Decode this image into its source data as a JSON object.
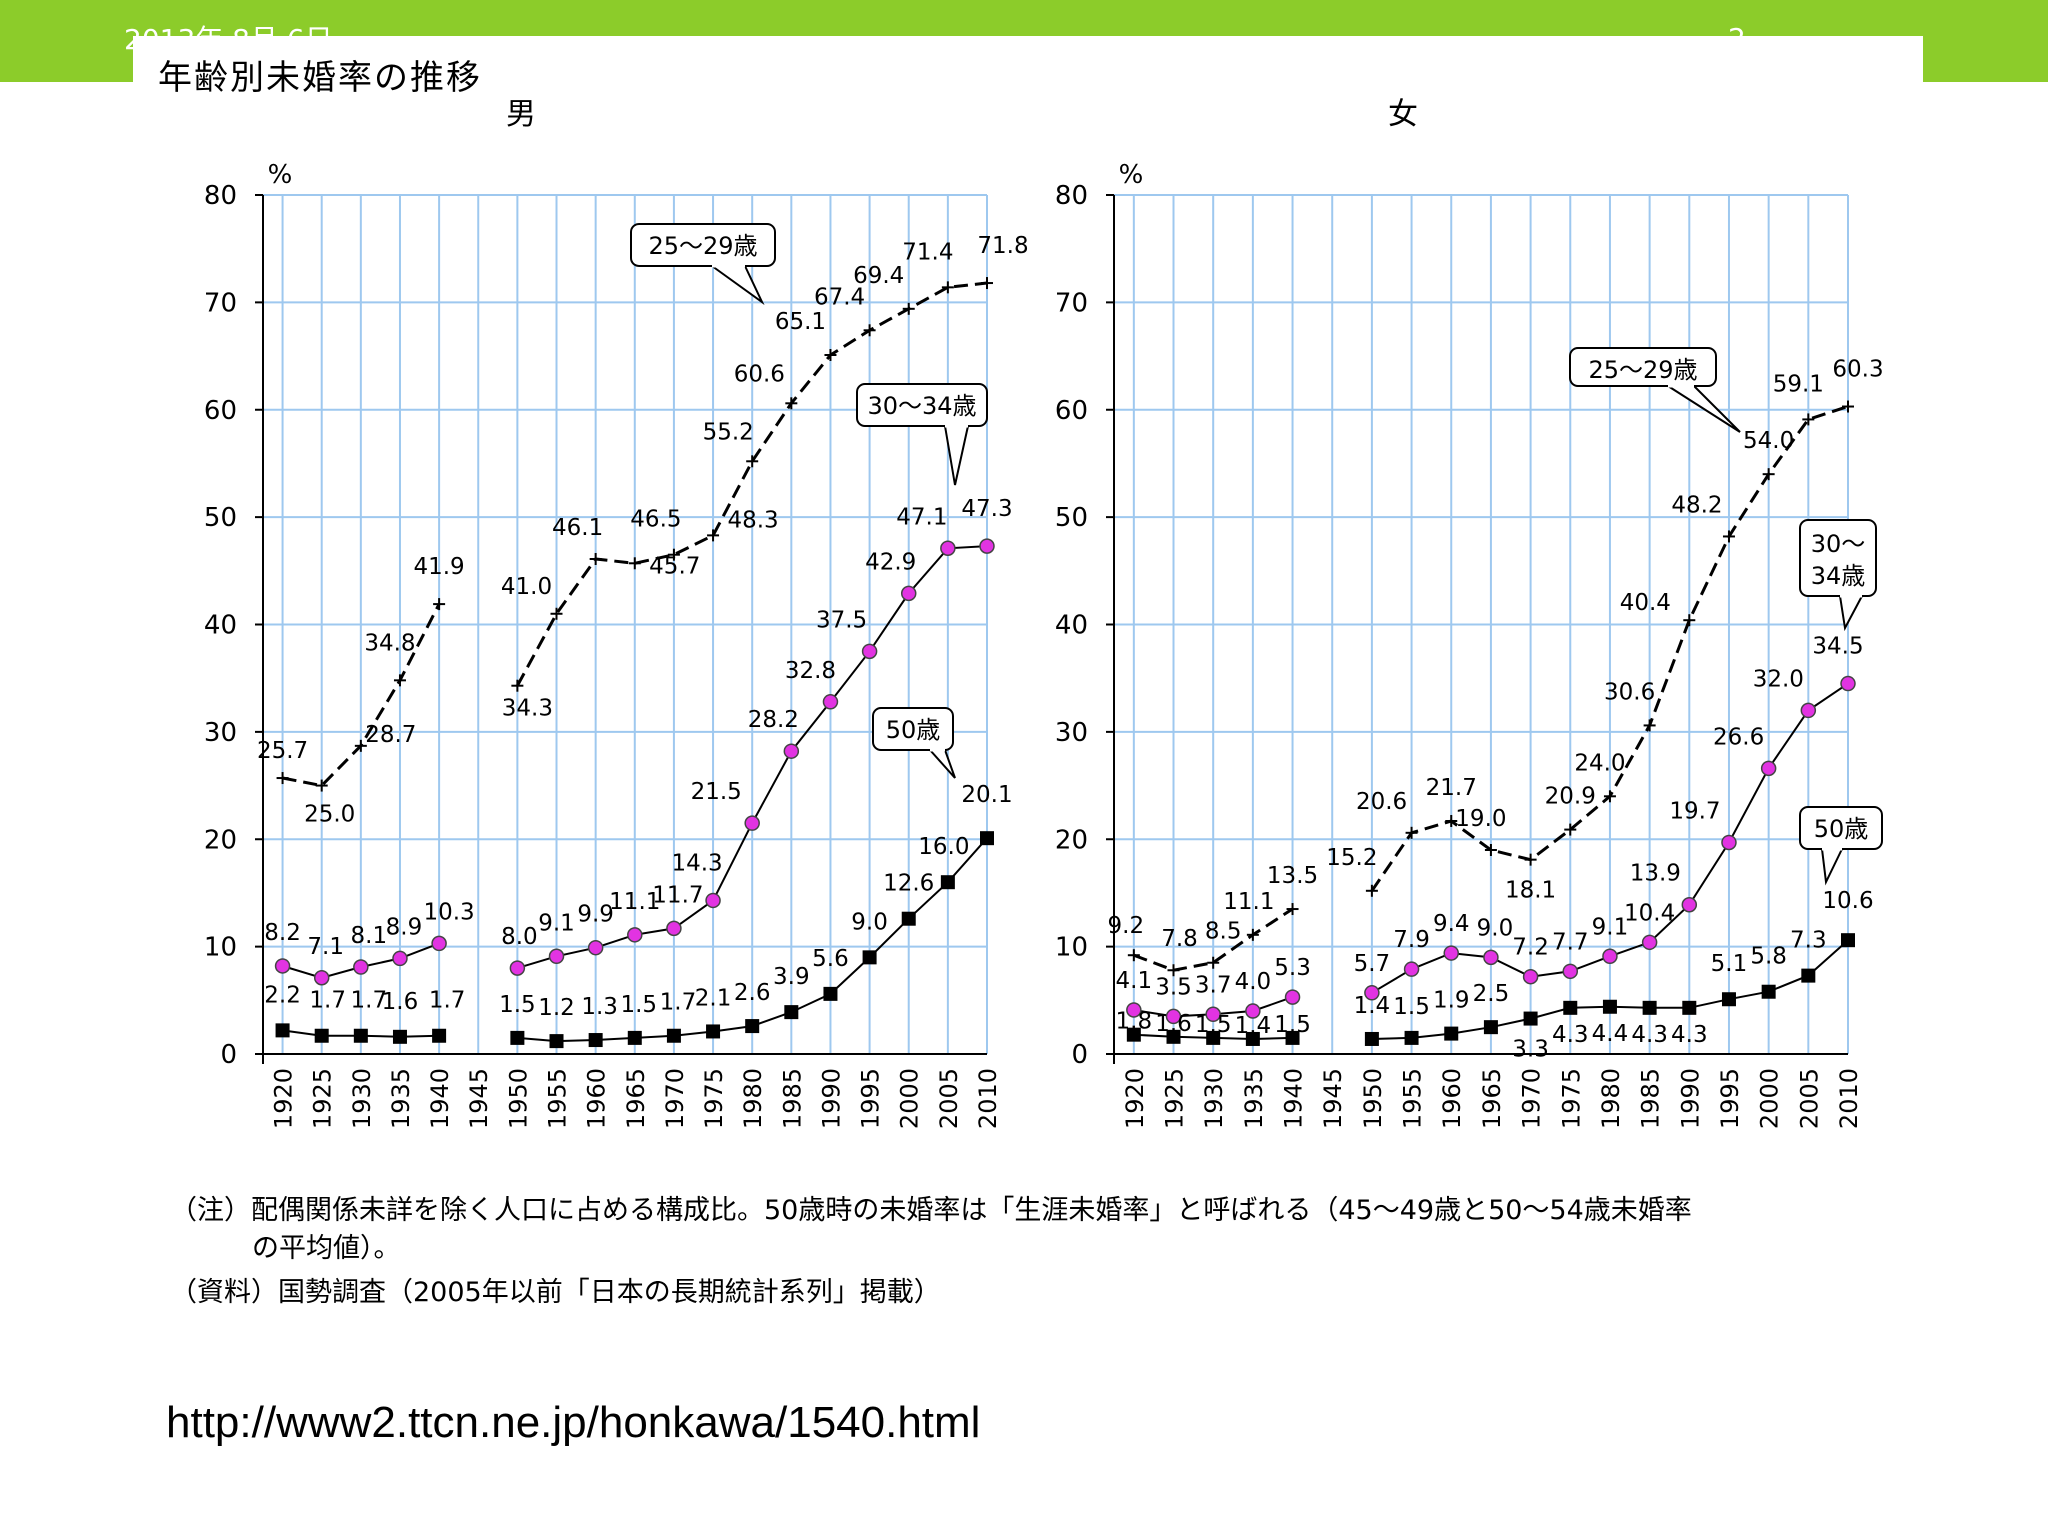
{
  "slide": {
    "date": "2013年 8月 6日",
    "page_number": "2"
  },
  "figure": {
    "title": "年齢別未婚率の推移"
  },
  "notes": {
    "line1": "（注）配偶関係未詳を除く人口に占める構成比。50歳時の未婚率は「生涯未婚率」と呼ばれる（45～49歳と50～54歳未婚率",
    "line2": "の平均値）。",
    "source": "（資料）国勢調査（2005年以前「日本の長期統計系列」掲載）"
  },
  "url": "http://www2.ttcn.ne.jp/honkawa/1540.html",
  "colors": {
    "header_green": "#8ccc2a",
    "grid": "#9ec8ef",
    "marker_30_34": "#e233e2",
    "marker_50": "#000000"
  },
  "chart_data": [
    {
      "type": "line",
      "title": "男",
      "ylabel": "%",
      "ylim": [
        0,
        80
      ],
      "yticks": [
        0,
        10,
        20,
        30,
        40,
        50,
        60,
        70,
        80
      ],
      "grid": true,
      "categories": [
        "1920",
        "1925",
        "1930",
        "1935",
        "1940",
        "1945",
        "1950",
        "1955",
        "1960",
        "1965",
        "1970",
        "1975",
        "1980",
        "1985",
        "1990",
        "1995",
        "2000",
        "2005",
        "2010"
      ],
      "series": [
        {
          "name": "25～29歳",
          "marker": "plus",
          "dashed": true,
          "values": [
            25.7,
            25.0,
            28.7,
            34.8,
            41.9,
            null,
            34.3,
            41.0,
            46.1,
            45.7,
            46.5,
            48.3,
            55.2,
            60.6,
            65.1,
            67.4,
            69.4,
            71.4,
            71.8
          ],
          "labels": [
            "25.7",
            "25.0",
            "28.7",
            "34.8",
            "41.9",
            null,
            "34.3",
            "41.0",
            "46.1",
            "45.7",
            "46.5",
            "48.3",
            "55.2",
            "60.6",
            "65.1",
            "67.4",
            "69.4",
            "71.4",
            "71.8"
          ]
        },
        {
          "name": "30～34歳",
          "marker": "circle",
          "values": [
            8.2,
            7.1,
            8.1,
            8.9,
            10.3,
            null,
            8.0,
            9.1,
            9.9,
            11.1,
            11.7,
            14.3,
            21.5,
            28.2,
            32.8,
            37.5,
            42.9,
            47.1,
            47.3
          ],
          "labels": [
            "8.2",
            "7.1",
            "8.1",
            "8.9",
            "10.3",
            null,
            "8.0",
            "9.1",
            "9.9",
            "11.1",
            "11.7",
            "14.3",
            "21.5",
            "28.2",
            "32.8",
            "37.5",
            "42.9",
            "47.1",
            "47.3"
          ]
        },
        {
          "name": "50歳",
          "marker": "square",
          "values": [
            2.2,
            1.7,
            1.7,
            1.6,
            1.7,
            null,
            1.5,
            1.2,
            1.3,
            1.5,
            1.7,
            2.1,
            2.6,
            3.9,
            5.6,
            9.0,
            12.6,
            16.0,
            20.1
          ],
          "labels": [
            "2.2",
            "1.7",
            "1.7",
            "1.6",
            "1.7",
            null,
            "1.5",
            "1.2",
            "1.3",
            "1.5",
            "1.7",
            "2.1",
            "2.6",
            "3.9",
            "5.6",
            "9.0",
            "12.6",
            "16.0",
            "20.1"
          ]
        }
      ]
    },
    {
      "type": "line",
      "title": "女",
      "ylabel": "%",
      "ylim": [
        0,
        80
      ],
      "yticks": [
        0,
        10,
        20,
        30,
        40,
        50,
        60,
        70,
        80
      ],
      "grid": true,
      "categories": [
        "1920",
        "1925",
        "1930",
        "1935",
        "1940",
        "1945",
        "1950",
        "1955",
        "1960",
        "1965",
        "1970",
        "1975",
        "1980",
        "1985",
        "1990",
        "1995",
        "2000",
        "2005",
        "2010"
      ],
      "series": [
        {
          "name": "25～29歳",
          "marker": "plus",
          "dashed": true,
          "values": [
            9.2,
            7.8,
            8.5,
            11.1,
            13.5,
            null,
            15.2,
            20.6,
            21.7,
            19.0,
            18.1,
            20.9,
            24.0,
            30.6,
            40.4,
            48.2,
            54.0,
            59.1,
            60.3
          ],
          "labels": [
            "9.2",
            "7.8",
            "8.5",
            "11.1",
            "13.5",
            null,
            "15.2",
            "20.6",
            "21.7",
            "19.0",
            "18.1",
            "20.9",
            "24.0",
            "30.6",
            "40.4",
            "48.2",
            "54.0",
            "59.1",
            "60.3"
          ]
        },
        {
          "name": "30～34歳",
          "marker": "circle",
          "values": [
            4.1,
            3.5,
            3.7,
            4.0,
            5.3,
            null,
            5.7,
            7.9,
            9.4,
            9.0,
            7.2,
            7.7,
            9.1,
            10.4,
            13.9,
            19.7,
            26.6,
            32.0,
            34.5
          ],
          "labels": [
            "4.1",
            "3.5",
            "3.7",
            "4.0",
            "5.3",
            null,
            "5.7",
            "7.9",
            "9.4",
            "9.0",
            "7.2",
            "7.7",
            "9.1",
            "10.4",
            "13.9",
            "19.7",
            "26.6",
            "32.0",
            "34.5"
          ]
        },
        {
          "name": "50歳",
          "marker": "square",
          "values": [
            1.8,
            1.6,
            1.5,
            1.4,
            1.5,
            null,
            1.4,
            1.5,
            1.9,
            2.5,
            3.3,
            4.3,
            4.4,
            4.3,
            4.3,
            5.1,
            5.8,
            7.3,
            10.6
          ],
          "labels": [
            "1.8",
            "1.6",
            "1.5",
            "1.4",
            "1.5",
            null,
            "1.4",
            "1.5",
            "1.9",
            "2.5",
            "3.3",
            "4.3",
            "4.4",
            "4.3",
            "4.3",
            "5.1",
            "5.8",
            "7.3",
            "10.6"
          ]
        }
      ]
    }
  ]
}
